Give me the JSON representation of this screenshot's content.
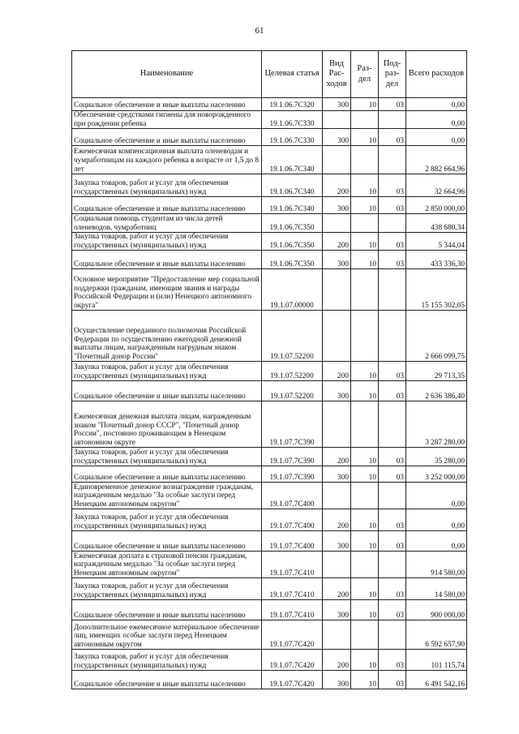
{
  "page_number": "61",
  "headers": [
    "Наименование",
    "Целевая статья",
    "Вид Рас-ходов",
    "Раз-дел",
    "Под-раз-дел",
    "Всего расходов"
  ],
  "rows": [
    {
      "name": "Социальное обеспечение и иные выплаты населению",
      "code": "19.1.06.7С320",
      "vid": "300",
      "razdel": "10",
      "podrazdel": "03",
      "total": "0,00"
    },
    {
      "name": "Обеспечение средствами гигиены для новорожденного при рождении ребенка",
      "code": "19.1.06.7С330",
      "vid": "",
      "razdel": "",
      "podrazdel": "",
      "total": "0,00"
    },
    {
      "name": "Социальное обеспечение и иные выплаты населению",
      "code": "19.1.06.7С330",
      "vid": "300",
      "razdel": "10",
      "podrazdel": "03",
      "total": "0,00"
    },
    {
      "name": "Ежемесячная компенсационная выплата оленеводам и чумработницам на каждого ребенка в возрасте от 1,5 до 8 лет",
      "code": "19.1.06.7С340",
      "vid": "",
      "razdel": "",
      "podrazdel": "",
      "total": "2 882 664,96"
    },
    {
      "name": "Закупка товаров, работ и услуг для обеспечения государственных (муниципальных) нужд",
      "code": "19.1.06.7С340",
      "vid": "200",
      "razdel": "10",
      "podrazdel": "03",
      "total": "32 664,96"
    },
    {
      "name": "Социальное обеспечение и иные выплаты населению",
      "code": "19.1.06.7С340",
      "vid": "300",
      "razdel": "10",
      "podrazdel": "03",
      "total": "2 850 000,00"
    },
    {
      "name": "Социальная помощь студентам из числа детей оленеводов, чумработниц",
      "code": "19.1.06.7С350",
      "vid": "",
      "razdel": "",
      "podrazdel": "",
      "total": "438 680,34"
    },
    {
      "name": "Закупка товаров, работ и услуг для обеспечения государственных (муниципальных) нужд",
      "code": "19.1.06.7С350",
      "vid": "200",
      "razdel": "10",
      "podrazdel": "03",
      "total": "5 344,04"
    },
    {
      "name": "Социальное обеспечение и иные выплаты населению",
      "code": "19.1.06.7С350",
      "vid": "300",
      "razdel": "10",
      "podrazdel": "03",
      "total": "433 336,30"
    },
    {
      "name": "Основное мероприятие \"Предоставление мер социальной поддержки гражданам, имеющим звания и награды Российской Федерации и (или) Ненецкого автономного округа\"",
      "code": "19.1.07.00000",
      "vid": "",
      "razdel": "",
      "podrazdel": "",
      "total": "15 155 302,05"
    },
    {
      "name": "Осуществление переданного полномочия Российской Федерации по осуществлению ежегодной денежной выплаты лицам, награжденным нагрудным знаком \"Почетный донор России\"",
      "code": "19.1.07.52200",
      "vid": "",
      "razdel": "",
      "podrazdel": "",
      "total": "2 666 099,75"
    },
    {
      "name": "Закупка товаров, работ и услуг для обеспечения государственных (муниципальных) нужд",
      "code": "19.1.07.52200",
      "vid": "200",
      "razdel": "10",
      "podrazdel": "03",
      "total": "29 713,35"
    },
    {
      "name": "Социальное обеспечение и иные выплаты населению",
      "code": "19.1.07.52200",
      "vid": "300",
      "razdel": "10",
      "podrazdel": "03",
      "total": "2 636 386,40"
    },
    {
      "name": "Ежемесячная денежная выплата лицам, награжденным знаком \"Почетный донор СССР\", \"Почетный донор России\", постоянно проживающим в Ненецком автономном округе",
      "code": "19.1.07.7С390",
      "vid": "",
      "razdel": "",
      "podrazdel": "",
      "total": "3 287 280,00"
    },
    {
      "name": "Закупка товаров, работ и услуг для обеспечения государственных (муниципальных) нужд",
      "code": "19.1.07.7С390",
      "vid": "200",
      "razdel": "10",
      "podrazdel": "03",
      "total": "35 280,00"
    },
    {
      "name": "Социальное обеспечение и иные выплаты населению",
      "code": "19.1.07.7С390",
      "vid": "300",
      "razdel": "10",
      "podrazdel": "03",
      "total": "3 252 000,00"
    },
    {
      "name": "Единовременное денежное вознаграждение гражданам, награжденным медалью \"За особые заслуги перед Ненецким автономным округом\"",
      "code": "19.1.07.7С400",
      "vid": "",
      "razdel": "",
      "podrazdel": "",
      "total": "0,00"
    },
    {
      "name": "Закупка товаров, работ и услуг для обеспечения государственных (муниципальных) нужд",
      "code": "19.1.07.7С400",
      "vid": "200",
      "razdel": "10",
      "podrazdel": "03",
      "total": "0,00"
    },
    {
      "name": "Социальное обеспечение и иные выплаты населению",
      "code": "19.1.07.7С400",
      "vid": "300",
      "razdel": "10",
      "podrazdel": "03",
      "total": "0,00"
    },
    {
      "name": "Ежемесячная доплата к страховой пенсии гражданам, награжденным медалью \"За особые заслуги перед Ненецким автономным округом\"",
      "code": "19.1.07.7С410",
      "vid": "",
      "razdel": "",
      "podrazdel": "",
      "total": "914 580,00"
    },
    {
      "name": "Закупка товаров, работ и услуг для обеспечения государственных (муниципальных) нужд",
      "code": "19.1.07.7С410",
      "vid": "200",
      "razdel": "10",
      "podrazdel": "03",
      "total": "14 580,00"
    },
    {
      "name": "Социальное обеспечение и иные выплаты населению",
      "code": "19.1.07.7С410",
      "vid": "300",
      "razdel": "10",
      "podrazdel": "03",
      "total": "900 000,00"
    },
    {
      "name": "Дополнительное ежемесячное материальное обеспечение лиц, имеющих особые заслуги перед Ненецким автономным округом",
      "code": "19.1.07.7С420",
      "vid": "",
      "razdel": "",
      "podrazdel": "",
      "total": "6 592 657,90"
    },
    {
      "name": "Закупка товаров, работ и услуг для обеспечения государственных (муниципальных) нужд",
      "code": "19.1.07.7С420",
      "vid": "200",
      "razdel": "10",
      "podrazdel": "03",
      "total": "101 115,74"
    },
    {
      "name": "Социальное обеспечение и иные выплаты населению",
      "code": "19.1.07.7С420",
      "vid": "300",
      "razdel": "10",
      "podrazdel": "03",
      "total": "6 491 542,16"
    }
  ]
}
